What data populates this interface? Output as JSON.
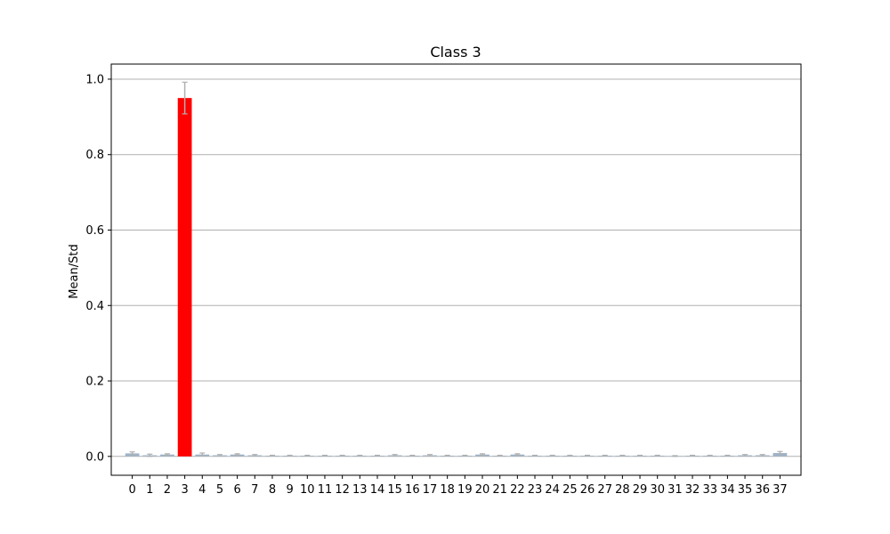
{
  "chart_data": {
    "type": "bar",
    "title": "Class 3",
    "xlabel": "",
    "ylabel": "Mean/Std",
    "ylim": [
      -0.05,
      1.04
    ],
    "xlim": [
      -1.2,
      38.2
    ],
    "yticks": [
      0.0,
      0.2,
      0.4,
      0.6,
      0.8,
      1.0
    ],
    "ytick_labels": [
      "0.0",
      "0.2",
      "0.4",
      "0.6",
      "0.8",
      "1.0"
    ],
    "grid": "y",
    "categories": [
      "0",
      "1",
      "2",
      "3",
      "4",
      "5",
      "6",
      "7",
      "8",
      "9",
      "10",
      "11",
      "12",
      "13",
      "14",
      "15",
      "16",
      "17",
      "18",
      "19",
      "20",
      "21",
      "22",
      "23",
      "24",
      "25",
      "26",
      "27",
      "28",
      "29",
      "30",
      "31",
      "32",
      "33",
      "34",
      "35",
      "36",
      "37"
    ],
    "values": [
      0.008,
      0.003,
      0.005,
      0.95,
      0.005,
      0.003,
      0.005,
      0.003,
      0.002,
      0.002,
      0.002,
      0.002,
      0.002,
      0.002,
      0.002,
      0.003,
      0.002,
      0.003,
      0.002,
      0.002,
      0.005,
      0.002,
      0.005,
      0.002,
      0.002,
      0.002,
      0.002,
      0.002,
      0.002,
      0.002,
      0.002,
      0.001,
      0.002,
      0.002,
      0.002,
      0.003,
      0.003,
      0.009
    ],
    "errors": [
      0.004,
      0.003,
      0.002,
      0.042,
      0.004,
      0.002,
      0.002,
      0.002,
      0.001,
      0.001,
      0.001,
      0.001,
      0.001,
      0.001,
      0.001,
      0.002,
      0.001,
      0.002,
      0.001,
      0.001,
      0.002,
      0.001,
      0.002,
      0.001,
      0.001,
      0.001,
      0.001,
      0.001,
      0.001,
      0.001,
      0.001,
      0.001,
      0.001,
      0.001,
      0.001,
      0.002,
      0.002,
      0.004
    ],
    "highlight_index": 3,
    "colors": {
      "highlight": "#ff0000",
      "default_bar": "#9fb4c8",
      "error_bar": "#b0b0b0",
      "grid": "#b0b0b0",
      "axis": "#000000"
    }
  }
}
